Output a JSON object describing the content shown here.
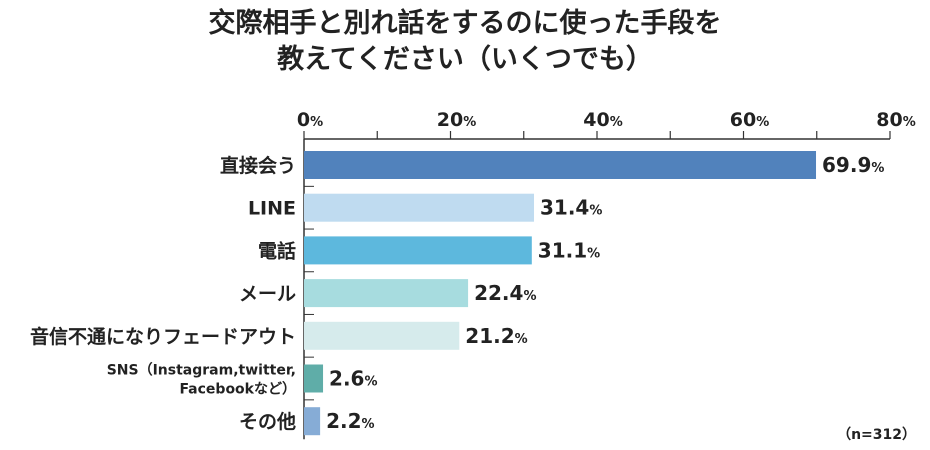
{
  "chart_data": {
    "type": "bar",
    "orientation": "horizontal",
    "title_lines": [
      "交際相手と別れ話をするのに使った手段を",
      "教えてください（いくつでも）"
    ],
    "categories": [
      {
        "label": "直接会う",
        "label_lines": [
          "直接会う"
        ]
      },
      {
        "label": "LINE",
        "label_lines": [
          "LINE"
        ]
      },
      {
        "label": "電話",
        "label_lines": [
          "電話"
        ]
      },
      {
        "label": "メール",
        "label_lines": [
          "メール"
        ]
      },
      {
        "label": "音信不通になりフェードアウト",
        "label_lines": [
          "音信不通になりフェードアウト"
        ]
      },
      {
        "label": "SNS（Instagram,twitter,Facebookなど）",
        "label_lines": [
          "SNS（Instagram,twitter,",
          "Facebookなど）"
        ]
      },
      {
        "label": "その他",
        "label_lines": [
          "その他"
        ]
      }
    ],
    "values": [
      69.9,
      31.4,
      31.1,
      22.4,
      21.2,
      2.6,
      2.2
    ],
    "value_labels": [
      "69.9",
      "31.4",
      "31.1",
      "22.4",
      "21.2",
      "2.6",
      "2.2"
    ],
    "unit": "%",
    "colors": [
      "#5182bc",
      "#bfdbf0",
      "#5db8dd",
      "#a7dcdf",
      "#d6ebec",
      "#5fada8",
      "#86acd6"
    ],
    "xlim": [
      0,
      80
    ],
    "x_ticks": [
      0,
      20,
      40,
      60,
      80
    ],
    "x_tick_labels": [
      "0",
      "20",
      "40",
      "60",
      "80"
    ],
    "grid": false,
    "legend": "none",
    "note": "（n=312）"
  }
}
